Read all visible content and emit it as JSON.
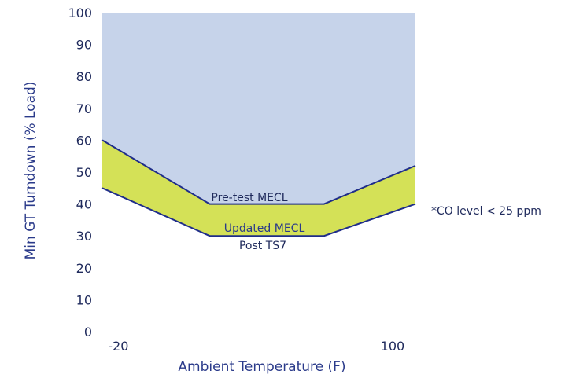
{
  "chart_data": {
    "type": "area",
    "title": "",
    "xlabel": "Ambient Temperature (F)",
    "ylabel": "Min GT Turndown (% Load)",
    "xlim": [
      -27,
      110
    ],
    "ylim": [
      0,
      100
    ],
    "y_ticks": [
      0,
      10,
      20,
      30,
      40,
      50,
      60,
      70,
      80,
      90,
      100
    ],
    "x_ticks": [
      -20,
      100
    ],
    "grid": false,
    "series": [
      {
        "name": "Pre-test MECL",
        "x": [
          -27,
          20,
          70,
          110
        ],
        "values": [
          60,
          40,
          40,
          52
        ]
      },
      {
        "name": "Updated MECL",
        "x": [
          -27,
          20,
          70,
          110
        ],
        "values": [
          45,
          30,
          30,
          40
        ]
      }
    ],
    "annotations": {
      "pre_test": "Pre-test MECL",
      "updated": "Updated MECL",
      "post": "Post TS7",
      "footnote": "*CO level < 25 ppm"
    },
    "colors": {
      "upper_region": "#c6d3ea",
      "band": "#d4e157",
      "line": "#1f2d8a",
      "axis_text": "#2a3a8a"
    }
  }
}
